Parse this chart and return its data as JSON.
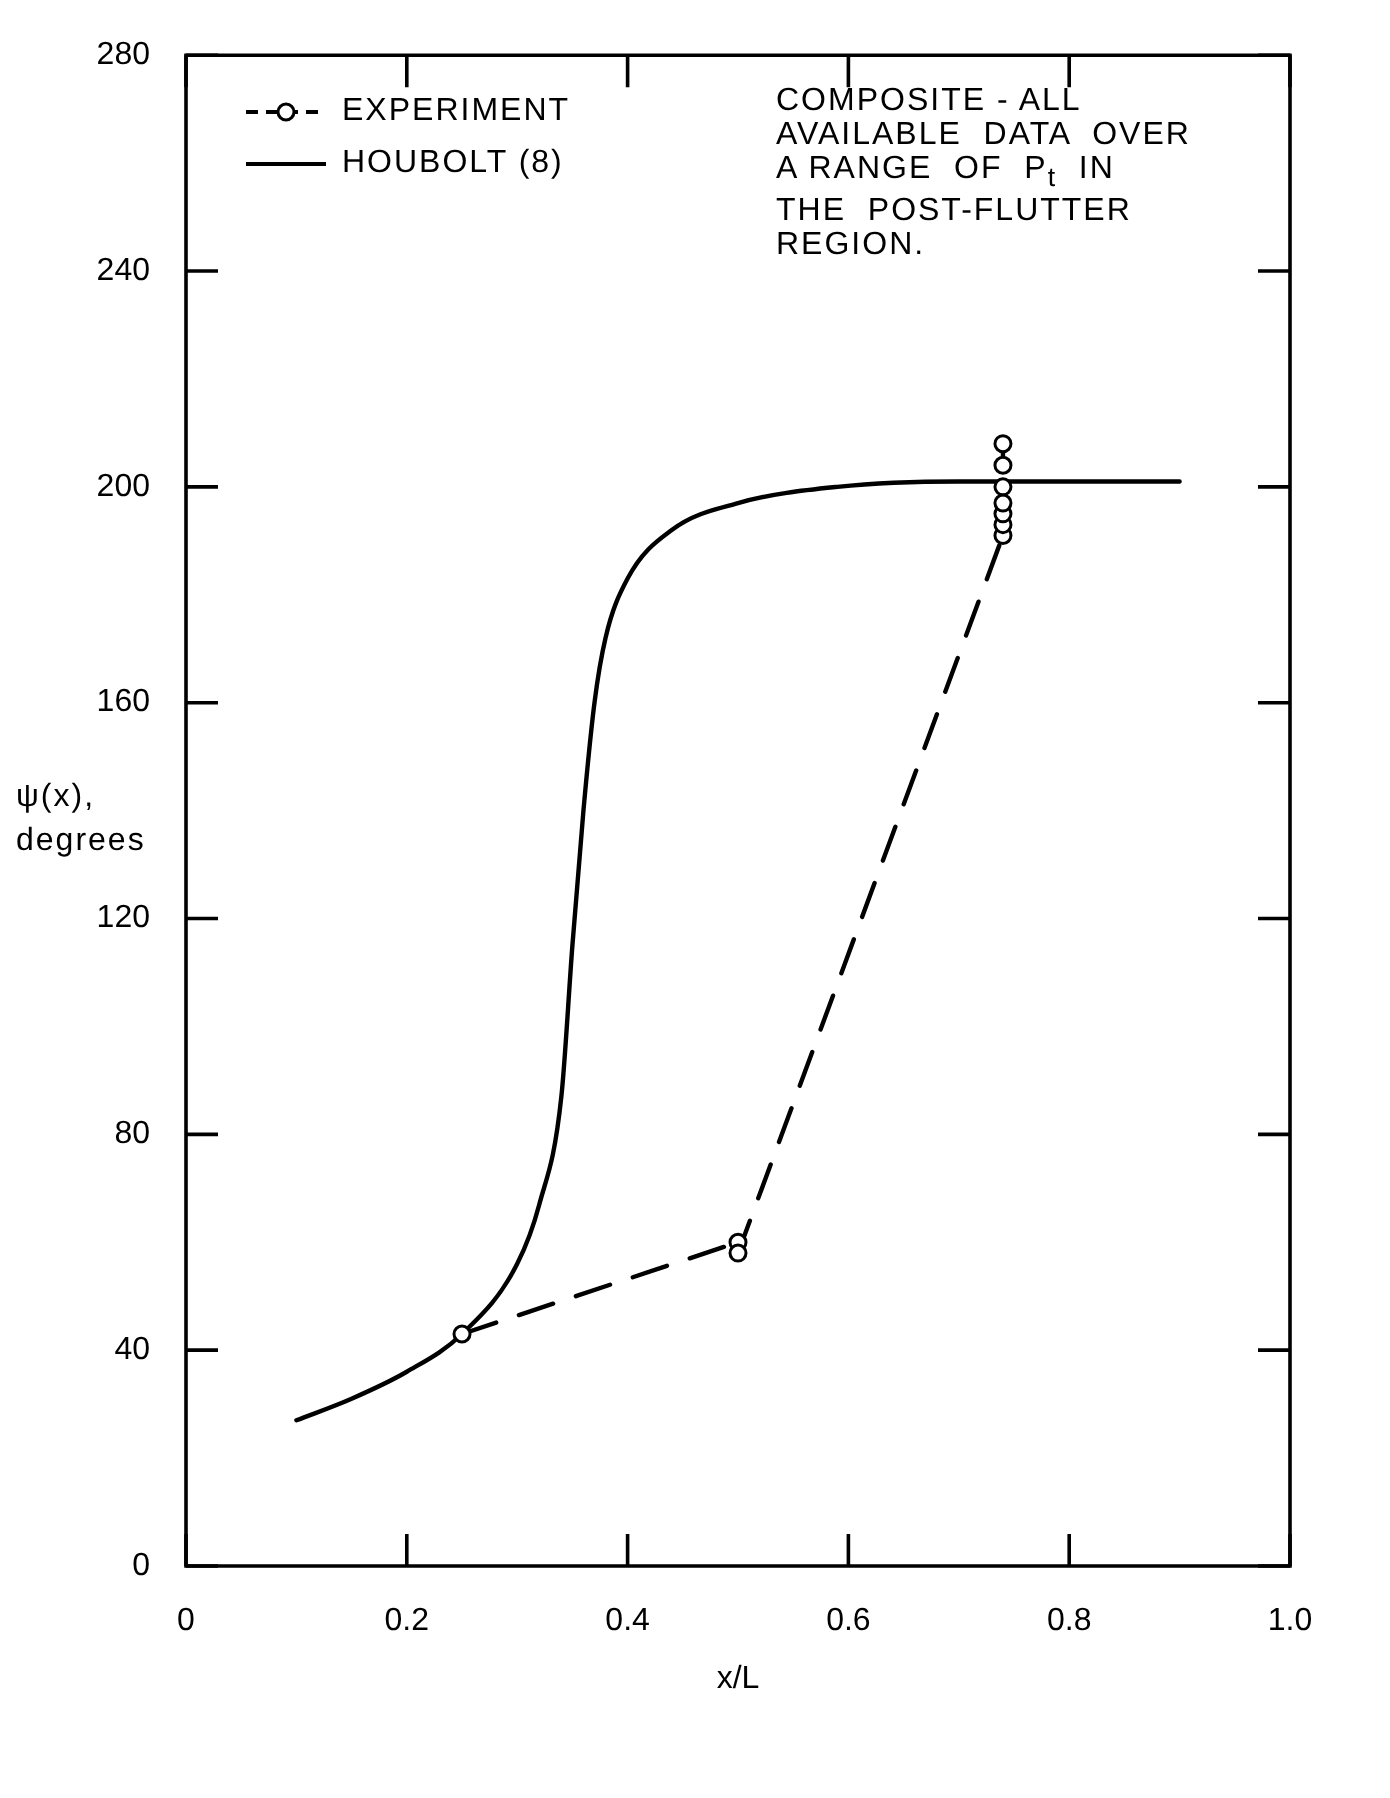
{
  "chart_data": {
    "type": "line",
    "xlabel": "x/L",
    "ylabel": "ψ(x),\ndegrees",
    "annotations": [
      "COMPOSITE - ALL\nAVAILABLE  DATA  OVER\nA RANGE  OF  P$_{t}$  IN\nTHE  POST-FLUTTER\nREGION."
    ],
    "series": [
      {
        "name": "EXPERIMENT",
        "type": "line",
        "color": "#000000",
        "marker": "circle",
        "line_style": "dashed",
        "x": [
          0.25,
          0.5,
          0.5,
          0.74,
          0.74,
          0.74,
          0.74,
          0.74,
          0.74,
          0.74
        ],
        "values": [
          43,
          60,
          58,
          191,
          193,
          195,
          197,
          200,
          204,
          208
        ]
      },
      {
        "name": "HOUBOLT (8)",
        "type": "line",
        "color": "#000000",
        "marker": "none",
        "line_style": "solid",
        "x": [
          0.1,
          0.15,
          0.2,
          0.25,
          0.3,
          0.32,
          0.34,
          0.35,
          0.36,
          0.37,
          0.38,
          0.4,
          0.44,
          0.5,
          0.59,
          0.7,
          0.8,
          0.9
        ],
        "values": [
          27,
          31,
          36,
          43,
          56,
          67,
          87,
          115,
          140,
          160,
          172,
          183,
          192,
          197,
          200,
          201,
          201,
          201
        ]
      }
    ],
    "xlim": [
      0,
      1
    ],
    "xticks": [
      0,
      0.2,
      0.4,
      0.6,
      0.8,
      {
        "value": 1,
        "label": "1.0"
      }
    ],
    "ylim": [
      0,
      280
    ],
    "yticks": [
      0,
      40,
      80,
      120,
      160,
      200,
      240,
      280
    ],
    "grid": false,
    "legend": "top left"
  }
}
